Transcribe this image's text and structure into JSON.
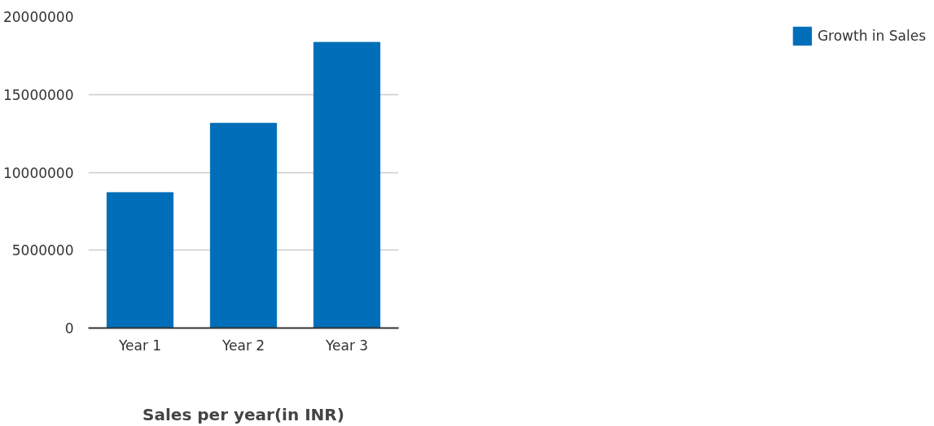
{
  "chart_data": {
    "type": "bar",
    "xlabel": "Sales per year(in INR)",
    "categories": [
      "Year 1",
      "Year 2",
      "Year 3"
    ],
    "series": [
      {
        "name": "Growth in Sales",
        "color": "#006eb8",
        "values": [
          8700000,
          13150000,
          18350000
        ]
      }
    ],
    "ylim": [
      0,
      20000000
    ],
    "yticks": [
      0,
      5000000,
      10000000,
      15000000,
      20000000
    ],
    "grid": "y",
    "legend": "top right"
  }
}
